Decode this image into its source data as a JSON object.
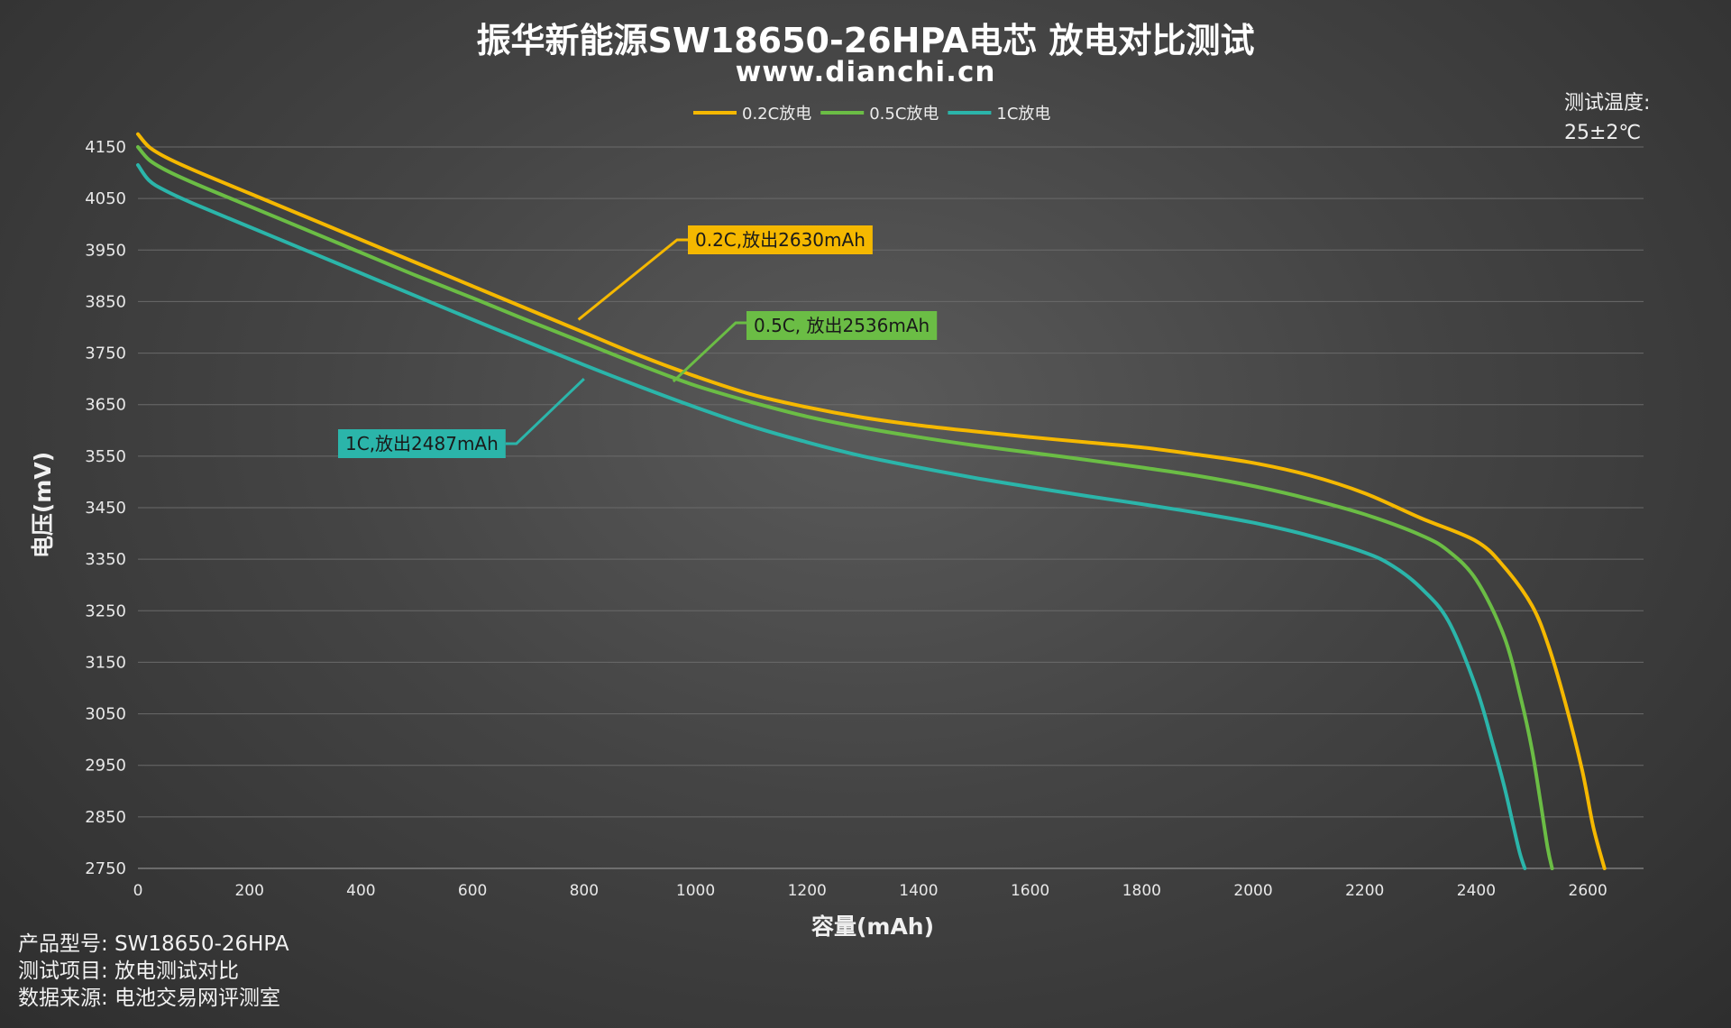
{
  "header": {
    "title": "振华新能源SW18650-26HPA电芯 放电对比测试",
    "subtitle": "www.dianchi.cn"
  },
  "temperature_note": {
    "label": "测试温度:",
    "value": "25±2℃"
  },
  "footer": {
    "product": "产品型号: SW18650-26HPA",
    "test_item": "测试项目: 放电测试对比",
    "source": "数据来源: 电池交易网评测室"
  },
  "chart_data": {
    "type": "line",
    "title": "振华新能源SW18650-26HPA电芯 放电对比测试",
    "xlabel": "容量(mAh)",
    "ylabel": "电压(mV)",
    "xlim": [
      0,
      2700
    ],
    "ylim": [
      2750,
      4150
    ],
    "x_ticks": [
      0,
      200,
      400,
      600,
      800,
      1000,
      1200,
      1400,
      1600,
      1800,
      2000,
      2200,
      2400,
      2600
    ],
    "y_ticks": [
      4150,
      4050,
      3950,
      3850,
      3750,
      3650,
      3550,
      3450,
      3350,
      3250,
      3150,
      3050,
      2950,
      2850,
      2750
    ],
    "grid": "horizontal",
    "legend_position": "top-center",
    "series": [
      {
        "name": "0.2C放电",
        "color": "#f5b800",
        "x": [
          0,
          20,
          50,
          100,
          200,
          300,
          400,
          500,
          600,
          700,
          800,
          900,
          1000,
          1100,
          1200,
          1300,
          1400,
          1500,
          1600,
          1700,
          1800,
          1900,
          2000,
          2100,
          2200,
          2300,
          2400,
          2450,
          2500,
          2530,
          2560,
          2590,
          2610,
          2630
        ],
        "y": [
          4175,
          4150,
          4130,
          4105,
          4060,
          4015,
          3970,
          3925,
          3880,
          3835,
          3790,
          3745,
          3705,
          3670,
          3645,
          3625,
          3610,
          3598,
          3587,
          3577,
          3567,
          3553,
          3537,
          3513,
          3478,
          3430,
          3385,
          3335,
          3260,
          3180,
          3070,
          2940,
          2830,
          2750
        ]
      },
      {
        "name": "0.5C放电",
        "color": "#6bbd45",
        "x": [
          0,
          20,
          50,
          100,
          200,
          300,
          400,
          500,
          600,
          700,
          800,
          900,
          1000,
          1100,
          1200,
          1300,
          1400,
          1500,
          1600,
          1700,
          1800,
          1900,
          2000,
          2100,
          2200,
          2300,
          2350,
          2400,
          2450,
          2480,
          2500,
          2515,
          2528,
          2536
        ],
        "y": [
          4150,
          4125,
          4105,
          4080,
          4035,
          3990,
          3945,
          3900,
          3857,
          3813,
          3770,
          3727,
          3687,
          3655,
          3627,
          3605,
          3587,
          3571,
          3557,
          3543,
          3528,
          3512,
          3492,
          3467,
          3437,
          3397,
          3366,
          3310,
          3200,
          3080,
          2980,
          2880,
          2790,
          2750
        ]
      },
      {
        "name": "1C放电",
        "color": "#2bb5aa",
        "x": [
          0,
          20,
          50,
          100,
          200,
          300,
          400,
          500,
          600,
          700,
          800,
          900,
          1000,
          1100,
          1200,
          1300,
          1400,
          1500,
          1600,
          1700,
          1800,
          1900,
          2000,
          2100,
          2200,
          2250,
          2300,
          2350,
          2400,
          2430,
          2450,
          2465,
          2478,
          2487
        ],
        "y": [
          4115,
          4085,
          4065,
          4040,
          3995,
          3950,
          3905,
          3860,
          3815,
          3771,
          3727,
          3685,
          3645,
          3608,
          3577,
          3550,
          3528,
          3508,
          3490,
          3473,
          3457,
          3440,
          3421,
          3396,
          3363,
          3337,
          3295,
          3230,
          3100,
          2990,
          2910,
          2840,
          2780,
          2750
        ]
      }
    ],
    "annotations": [
      {
        "text": "0.2C,放出2630mAh",
        "series": "0.2C放电",
        "color": "#f5b800",
        "point": [
          790,
          3815
        ]
      },
      {
        "text": "0.5C, 放出2536mAh",
        "series": "0.5C放电",
        "color": "#6bbd45",
        "point": [
          960,
          3695
        ]
      },
      {
        "text": "1C,放出2487mAh",
        "series": "1C放电",
        "color": "#2bb5aa",
        "point": [
          800,
          3700
        ]
      }
    ]
  }
}
